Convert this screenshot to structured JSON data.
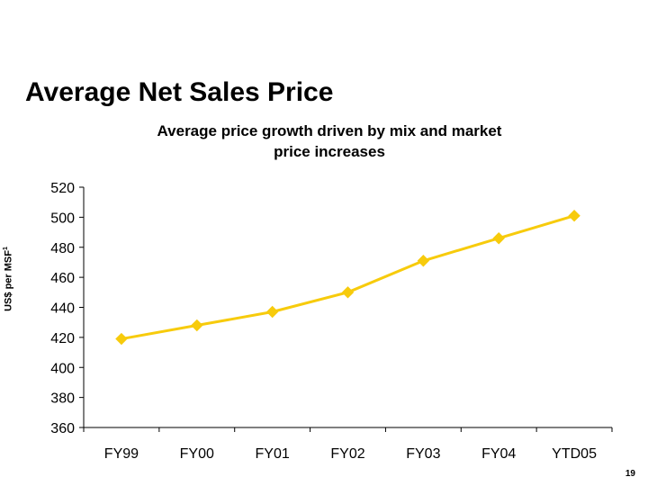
{
  "slide": {
    "title": "Average Net Sales Price",
    "page_number": "19"
  },
  "colors": {
    "series": "#f7cb0c",
    "axis": "#000000"
  },
  "chart_data": {
    "type": "line",
    "title_lines": [
      "Average price growth driven by mix and market",
      "price increases"
    ],
    "ylabel": "US$ per MSF",
    "ylabel_superscript": "1",
    "xlabel": "",
    "categories": [
      "FY99",
      "FY00",
      "FY01",
      "FY02",
      "FY03",
      "FY04",
      "YTD05"
    ],
    "series": [
      {
        "values": [
          419,
          428,
          437,
          450,
          471,
          486,
          501
        ],
        "marker": "diamond"
      }
    ],
    "ylim": [
      360,
      520
    ],
    "yticks": [
      360,
      380,
      400,
      420,
      440,
      460,
      480,
      500,
      520
    ],
    "grid": false,
    "legend": "none"
  }
}
